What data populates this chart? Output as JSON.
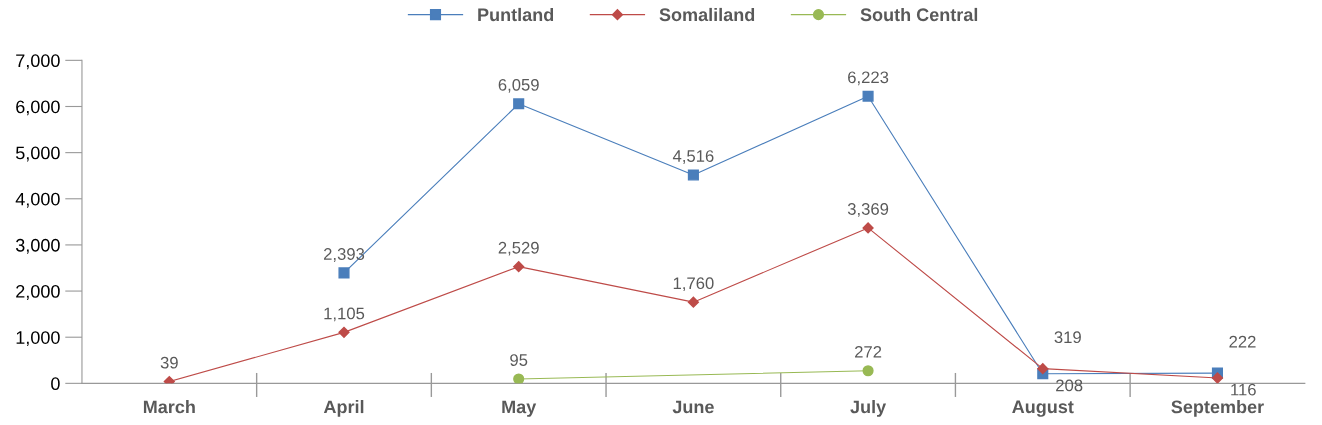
{
  "chart_data": {
    "type": "line",
    "categories": [
      "March",
      "April",
      "May",
      "June",
      "July",
      "August",
      "September"
    ],
    "series": [
      {
        "name": "Puntland",
        "color": "#4a7ebb",
        "marker": "square",
        "values": [
          null,
          2393,
          6059,
          4516,
          6223,
          208,
          222
        ],
        "value_labels": [
          null,
          "2,393",
          "6,059",
          "4,516",
          "6,223",
          "208",
          "222"
        ]
      },
      {
        "name": "Somaliland",
        "color": "#be4b48",
        "marker": "diamond",
        "values": [
          39,
          1105,
          2529,
          1760,
          3369,
          319,
          116
        ],
        "value_labels": [
          "39",
          "1,105",
          "2,529",
          "1,760",
          "3,369",
          "319",
          "116"
        ]
      },
      {
        "name": "South Central",
        "color": "#98b954",
        "marker": "circle",
        "values": [
          null,
          null,
          95,
          null,
          272,
          null,
          null
        ],
        "value_labels": [
          null,
          null,
          "95",
          null,
          "272",
          null,
          null
        ]
      }
    ],
    "ylim": [
      0,
      7000
    ],
    "yticks": [
      {
        "value": 0,
        "label": "0"
      },
      {
        "value": 1000,
        "label": "1,000"
      },
      {
        "value": 2000,
        "label": "2,000"
      },
      {
        "value": 3000,
        "label": "3,000"
      },
      {
        "value": 4000,
        "label": "4,000"
      },
      {
        "value": 5000,
        "label": "5,000"
      },
      {
        "value": 6000,
        "label": "6,000"
      },
      {
        "value": 7000,
        "label": "7,000"
      }
    ],
    "grid": false,
    "legend": "top"
  }
}
